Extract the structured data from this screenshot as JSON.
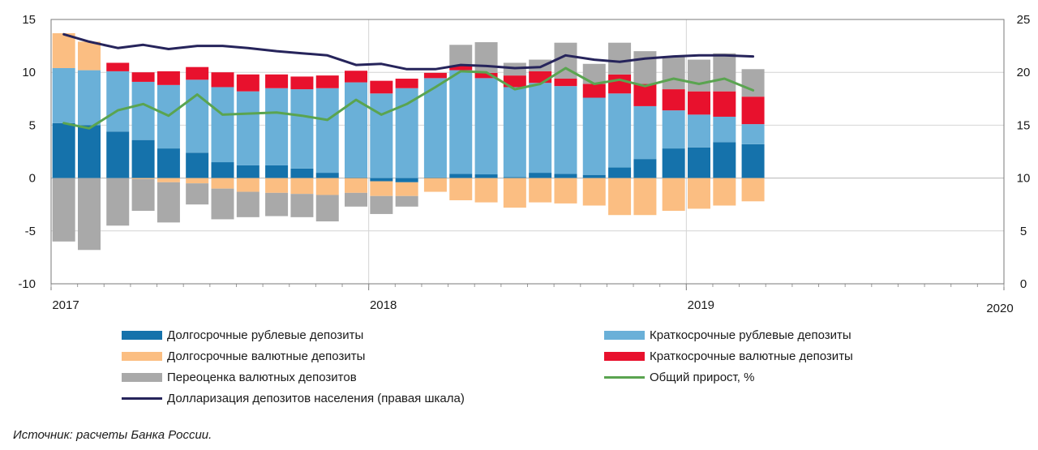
{
  "source_note": "Источник: расчеты Банка России.",
  "chart_data": {
    "type": "bar",
    "stacked": true,
    "x_tick_labels": [
      "2017",
      "2018",
      "2019",
      "2020"
    ],
    "x_range": [
      2017.0,
      2020.0
    ],
    "x": [
      2017.04,
      2017.12,
      2017.21,
      2017.29,
      2017.37,
      2017.46,
      2017.54,
      2017.62,
      2017.71,
      2017.79,
      2017.87,
      2017.96,
      2018.04,
      2018.12,
      2018.21,
      2018.29,
      2018.37,
      2018.46,
      2018.54,
      2018.62,
      2018.71,
      2018.79,
      2018.87,
      2018.96,
      2019.04,
      2019.12,
      2019.21
    ],
    "y_left": {
      "min": -10,
      "max": 15,
      "ticks": [
        -10,
        -5,
        0,
        5,
        10,
        15
      ]
    },
    "y_right": {
      "min": 0,
      "max": 25,
      "ticks": [
        0,
        5,
        10,
        15,
        20,
        25
      ]
    },
    "grid": true,
    "legend_position": "bottom",
    "series": [
      {
        "name": "Долгосрочные рублевые депозиты",
        "color": "#1572ab",
        "axis": "left",
        "values": [
          5.2,
          5.0,
          4.4,
          3.6,
          2.8,
          2.4,
          1.5,
          1.2,
          1.2,
          0.9,
          0.5,
          0.05,
          -0.3,
          -0.4,
          0.05,
          0.4,
          0.35,
          0.1,
          0.5,
          0.4,
          0.3,
          1.0,
          1.8,
          2.8,
          2.9,
          3.4,
          3.2
        ]
      },
      {
        "name": "Краткосрочные рублевые депозиты",
        "color": "#6ab0d8",
        "axis": "left",
        "values": [
          5.2,
          5.2,
          5.7,
          5.5,
          6.0,
          6.9,
          7.1,
          7.0,
          7.3,
          7.5,
          8.0,
          9.0,
          8.0,
          8.5,
          9.4,
          9.8,
          9.1,
          8.5,
          8.5,
          8.3,
          7.3,
          7.0,
          5.0,
          3.6,
          3.1,
          2.4,
          1.9
        ]
      },
      {
        "name": "Долгосрочные валютные депозиты",
        "color": "#fbbe82",
        "axis": "left",
        "values": [
          3.3,
          2.7,
          0.0,
          -0.1,
          -0.4,
          -0.5,
          -1.0,
          -1.3,
          -1.4,
          -1.5,
          -1.6,
          -1.4,
          -1.4,
          -1.3,
          -1.3,
          -2.1,
          -2.3,
          -2.8,
          -2.3,
          -2.4,
          -2.6,
          -3.5,
          -3.5,
          -3.1,
          -2.9,
          -2.6,
          -2.2
        ]
      },
      {
        "name": "Краткосрочные валютные депозиты",
        "color": "#e8112d",
        "axis": "left",
        "values": [
          0.0,
          0.0,
          0.8,
          0.9,
          1.3,
          1.2,
          1.4,
          1.6,
          1.3,
          1.2,
          1.2,
          1.1,
          1.2,
          0.9,
          0.5,
          0.4,
          0.5,
          1.1,
          1.1,
          0.7,
          1.3,
          1.8,
          2.1,
          2.0,
          2.2,
          2.4,
          2.6
        ]
      },
      {
        "name": "Переоценка валютных депозитов",
        "color": "#a9a9a9",
        "axis": "left",
        "values": [
          -6.0,
          -6.8,
          -4.5,
          -3.0,
          -3.8,
          -2.0,
          -2.9,
          -2.4,
          -2.2,
          -2.2,
          -2.5,
          -1.3,
          -1.7,
          -1.0,
          0.0,
          2.0,
          2.9,
          1.2,
          1.1,
          3.4,
          1.9,
          3.0,
          3.1,
          3.1,
          3.0,
          3.6,
          2.6
        ]
      }
    ],
    "lines": [
      {
        "name": "Общий прирост, %",
        "color": "#5aa450",
        "axis": "left",
        "values": [
          5.2,
          4.7,
          6.4,
          7.0,
          5.9,
          7.9,
          6.0,
          6.1,
          6.2,
          5.9,
          5.5,
          7.4,
          6.0,
          7.0,
          8.6,
          10.1,
          10.0,
          8.4,
          8.9,
          10.4,
          8.9,
          9.3,
          8.7,
          9.4,
          8.9,
          9.4,
          8.3
        ]
      },
      {
        "name": "Долларизация депозитов населения (правая шкала)",
        "color": "#26245b",
        "axis": "right",
        "values": [
          23.6,
          22.9,
          22.3,
          22.6,
          22.2,
          22.5,
          22.5,
          22.3,
          22.0,
          21.8,
          21.6,
          20.7,
          20.8,
          20.3,
          20.3,
          20.7,
          20.6,
          20.4,
          20.5,
          21.6,
          21.2,
          21.0,
          21.3,
          21.5,
          21.6,
          21.6,
          21.5
        ]
      }
    ]
  }
}
